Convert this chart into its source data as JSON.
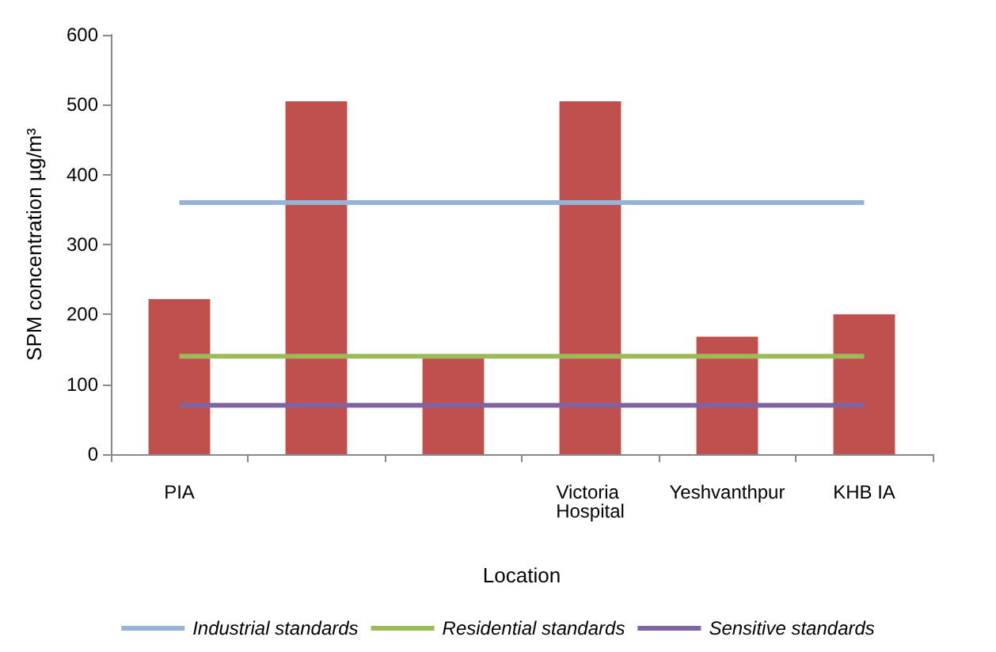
{
  "chart_data": {
    "type": "bar",
    "xlabel": "Location",
    "ylabel": "SPM concentration µg/m³",
    "categories": [
      "PIA",
      null,
      null,
      "Victoria Hospital",
      "Yeshvanthpur",
      "KHB IA"
    ],
    "series": [
      {
        "color": "#c0504d",
        "values": [
          222,
          505,
          138,
          505,
          168,
          200
        ]
      },
      {
        "type": "line",
        "name": "Industrial standards",
        "color": "#95b3d7",
        "values": [
          360,
          360,
          360,
          360,
          360,
          360
        ]
      },
      {
        "type": "line",
        "name": "Residential standards",
        "color": "#9bbb59",
        "values": [
          140,
          140,
          140,
          140,
          140,
          140
        ]
      },
      {
        "type": "line",
        "name": "Sensitive standards",
        "color": "#8064a2",
        "values": [
          70,
          70,
          70,
          70,
          70,
          70
        ]
      }
    ],
    "ylim": [
      0,
      600
    ],
    "yticks": [
      0,
      100,
      200,
      300,
      400,
      500,
      600
    ],
    "grid": false,
    "legend": "bottom",
    "marker": "none",
    "line_style": "solid"
  }
}
